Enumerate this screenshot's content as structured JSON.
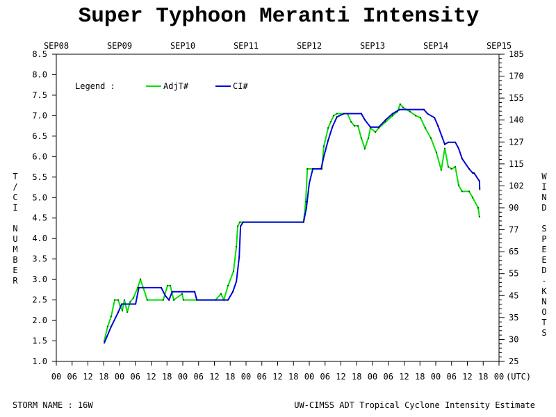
{
  "chart_data": {
    "type": "line",
    "title": "Super Typhoon Meranti Intensity",
    "ylabel": "T/CI NUMBER",
    "y2label": "WIND SPEED-KNOTS",
    "xunit": "(UTC)",
    "ylim": [
      1.0,
      8.5
    ],
    "ytick_labels": [
      "1.0",
      "1.5",
      "2.0",
      "2.5",
      "3.0",
      "3.5",
      "4.0",
      "4.5",
      "5.0",
      "5.5",
      "6.0",
      "6.5",
      "7.0",
      "7.5",
      "8.0",
      "8.5"
    ],
    "y2tick_labels": [
      "25",
      "30",
      "35",
      "45",
      "55",
      "65",
      "77",
      "90",
      "102",
      "115",
      "127",
      "140",
      "155",
      "170",
      "185"
    ],
    "date_labels": [
      "SEP08",
      "SEP09",
      "SEP10",
      "SEP11",
      "SEP12",
      "SEP13",
      "SEP14",
      "SEP15"
    ],
    "hour_labels": [
      "00",
      "06",
      "12",
      "18",
      "00",
      "06",
      "12",
      "18",
      "00",
      "06",
      "12",
      "18",
      "00",
      "06",
      "12",
      "18",
      "00",
      "06",
      "12",
      "18",
      "00",
      "06",
      "12",
      "18",
      "00",
      "06",
      "12",
      "18",
      "00"
    ],
    "xlim": [
      "09-08 00:00",
      "09-15 00:00"
    ],
    "legend": {
      "label": "Legend :",
      "placement": "top-left"
    },
    "series": [
      {
        "name": "AdjT#",
        "color": "#00e000",
        "points": [
          [
            "09-08 18:12",
            1.5
          ],
          [
            "09-08 19:30",
            1.85
          ],
          [
            "09-08 20:50",
            2.1
          ],
          [
            "09-08 22:10",
            2.5
          ],
          [
            "09-08 23:30",
            2.5
          ],
          [
            "09-09 00:15",
            2.35
          ],
          [
            "09-09 01:05",
            2.25
          ],
          [
            "09-09 01:50",
            2.5
          ],
          [
            "09-09 02:55",
            2.2
          ],
          [
            "09-09 04:00",
            2.45
          ],
          [
            "09-09 05:15",
            2.55
          ],
          [
            "09-09 06:55",
            2.8
          ],
          [
            "09-09 07:55",
            3.0
          ],
          [
            "09-09 09:00",
            2.8
          ],
          [
            "09-09 10:30",
            2.5
          ],
          [
            "09-09 16:35",
            2.5
          ],
          [
            "09-09 18:12",
            2.85
          ],
          [
            "09-09 19:15",
            2.85
          ],
          [
            "09-09 20:35",
            2.5
          ],
          [
            "09-09 23:45",
            2.65
          ],
          [
            "09-10 00:15",
            2.5
          ],
          [
            "09-10 12:25",
            2.5
          ],
          [
            "09-10 14:30",
            2.65
          ],
          [
            "09-10 15:35",
            2.5
          ],
          [
            "09-10 17:10",
            2.85
          ],
          [
            "09-10 19:15",
            3.2
          ],
          [
            "09-10 20:20",
            3.8
          ],
          [
            "09-10 20:50",
            4.3
          ],
          [
            "09-10 21:40",
            4.4
          ],
          [
            "09-11 21:50",
            4.4
          ],
          [
            "09-11 22:40",
            4.9
          ],
          [
            "09-11 23:15",
            5.7
          ],
          [
            "09-12 04:45",
            5.7
          ],
          [
            "09-12 05:30",
            6.25
          ],
          [
            "09-12 07:10",
            6.7
          ],
          [
            "09-12 08:10",
            6.85
          ],
          [
            "09-12 09:15",
            7.0
          ],
          [
            "09-12 10:30",
            7.05
          ],
          [
            "09-12 14:30",
            7.05
          ],
          [
            "09-12 15:50",
            6.85
          ],
          [
            "09-12 17:10",
            6.75
          ],
          [
            "09-12 18:30",
            6.75
          ],
          [
            "09-12 19:45",
            6.45
          ],
          [
            "09-12 21:05",
            6.2
          ],
          [
            "09-12 22:25",
            6.45
          ],
          [
            "09-12 23:12",
            6.7
          ],
          [
            "09-13 01:05",
            6.6
          ],
          [
            "09-13 02:22",
            6.7
          ],
          [
            "09-13 05:00",
            6.85
          ],
          [
            "09-13 07:38",
            7.0
          ],
          [
            "09-13 09:30",
            7.1
          ],
          [
            "09-13 10:30",
            7.28
          ],
          [
            "09-13 11:35",
            7.2
          ],
          [
            "09-13 14:12",
            7.1
          ],
          [
            "09-13 16:22",
            7.0
          ],
          [
            "09-13 18:12",
            6.95
          ],
          [
            "09-13 20:00",
            6.7
          ],
          [
            "09-13 22:10",
            6.45
          ],
          [
            "09-14 00:15",
            6.1
          ],
          [
            "09-14 02:05",
            5.67
          ],
          [
            "09-14 03:25",
            6.2
          ],
          [
            "09-14 04:45",
            5.75
          ],
          [
            "09-14 06:00",
            5.7
          ],
          [
            "09-14 07:25",
            5.75
          ],
          [
            "09-14 08:40",
            5.3
          ],
          [
            "09-14 10:00",
            5.15
          ],
          [
            "09-14 12:40",
            5.15
          ],
          [
            "09-14 14:00",
            5.0
          ],
          [
            "09-14 16:05",
            4.75
          ],
          [
            "09-14 16:35",
            4.53
          ]
        ]
      },
      {
        "name": "CI#",
        "color": "#0000e0",
        "points": [
          [
            "09-08 18:12",
            1.45
          ],
          [
            "09-08 20:50",
            1.85
          ],
          [
            "09-08 23:30",
            2.2
          ],
          [
            "09-09 00:50",
            2.4
          ],
          [
            "09-09 06:05",
            2.4
          ],
          [
            "09-09 07:20",
            2.8
          ],
          [
            "09-09 08:40",
            2.8
          ],
          [
            "09-09 15:50",
            2.8
          ],
          [
            "09-09 17:25",
            2.6
          ],
          [
            "09-09 18:45",
            2.5
          ],
          [
            "09-09 20:00",
            2.7
          ],
          [
            "09-10 04:30",
            2.7
          ],
          [
            "09-10 05:20",
            2.5
          ],
          [
            "09-10 17:10",
            2.5
          ],
          [
            "09-10 19:00",
            2.7
          ],
          [
            "09-10 20:20",
            2.95
          ],
          [
            "09-10 21:25",
            3.55
          ],
          [
            "09-10 21:55",
            4.3
          ],
          [
            "09-10 22:55",
            4.4
          ],
          [
            "09-11 21:50",
            4.4
          ],
          [
            "09-11 22:55",
            4.75
          ],
          [
            "09-12 00:00",
            5.35
          ],
          [
            "09-12 01:20",
            5.7
          ],
          [
            "09-12 04:30",
            5.7
          ],
          [
            "09-12 05:30",
            6.0
          ],
          [
            "09-12 07:10",
            6.4
          ],
          [
            "09-12 08:45",
            6.72
          ],
          [
            "09-12 10:30",
            6.97
          ],
          [
            "09-12 13:10",
            7.05
          ],
          [
            "09-12 19:45",
            7.05
          ],
          [
            "09-12 21:05",
            6.9
          ],
          [
            "09-12 23:12",
            6.72
          ],
          [
            "09-13 02:22",
            6.72
          ],
          [
            "09-13 05:00",
            6.9
          ],
          [
            "09-13 07:38",
            7.05
          ],
          [
            "09-13 10:15",
            7.15
          ],
          [
            "09-13 19:30",
            7.15
          ],
          [
            "09-13 20:50",
            7.05
          ],
          [
            "09-13 23:30",
            6.95
          ],
          [
            "09-14 00:50",
            6.75
          ],
          [
            "09-14 03:25",
            6.3
          ],
          [
            "09-14 04:45",
            6.35
          ],
          [
            "09-14 07:25",
            6.35
          ],
          [
            "09-14 08:40",
            6.2
          ],
          [
            "09-14 10:00",
            5.95
          ],
          [
            "09-14 12:40",
            5.7
          ],
          [
            "09-14 14:00",
            5.6
          ],
          [
            "09-14 14:30",
            5.6
          ],
          [
            "09-14 16:35",
            5.4
          ],
          [
            "09-14 16:40",
            5.2
          ]
        ]
      }
    ]
  },
  "footer": {
    "storm_name": "STORM NAME : 16W",
    "source": "UW-CIMSS ADT Tropical Cyclone Intensity Estimate"
  }
}
